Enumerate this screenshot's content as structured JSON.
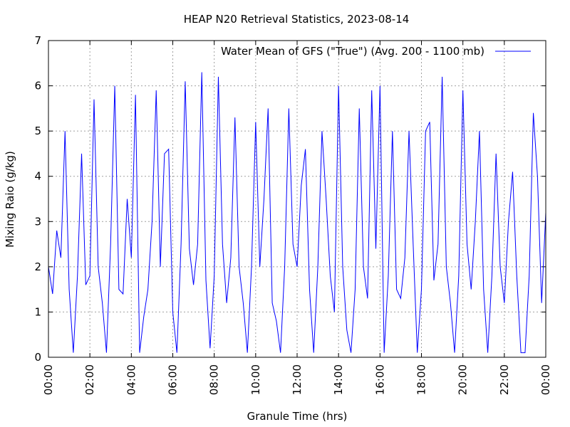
{
  "chart_data": {
    "type": "line",
    "title": "HEAP N20 Retrieval Statistics, 2023-08-14",
    "x_label": "Granule Time (hrs)",
    "y_label": "Mixing Raio (g/kg)",
    "x": [
      0,
      0.2,
      0.4,
      0.6,
      0.8,
      1,
      1.2,
      1.4,
      1.6,
      1.8,
      2,
      2.2,
      2.4,
      2.6,
      2.8,
      3,
      3.2,
      3.4,
      3.6,
      3.8,
      4,
      4.2,
      4.4,
      4.6,
      4.8,
      5,
      5.2,
      5.4,
      5.6,
      5.8,
      6,
      6.2,
      6.4,
      6.6,
      6.8,
      7,
      7.2,
      7.4,
      7.6,
      7.8,
      8,
      8.2,
      8.4,
      8.6,
      8.8,
      9,
      9.2,
      9.4,
      9.6,
      9.8,
      10,
      10.2,
      10.4,
      10.6,
      10.8,
      11,
      11.2,
      11.4,
      11.6,
      11.8,
      12,
      12.2,
      12.4,
      12.6,
      12.8,
      13,
      13.2,
      13.4,
      13.6,
      13.8,
      14,
      14.2,
      14.4,
      14.6,
      14.8,
      15,
      15.2,
      15.4,
      15.6,
      15.8,
      16,
      16.2,
      16.4,
      16.6,
      16.8,
      17,
      17.2,
      17.4,
      17.6,
      17.8,
      18,
      18.2,
      18.4,
      18.6,
      18.8,
      19,
      19.2,
      19.4,
      19.6,
      19.8,
      20,
      20.2,
      20.4,
      20.6,
      20.8,
      21,
      21.2,
      21.4,
      21.6,
      21.8,
      22,
      22.2,
      22.4,
      22.6,
      22.8,
      23,
      23.2,
      23.4,
      23.6,
      23.8,
      24
    ],
    "series": [
      {
        "name": "Water Mean of GFS (\"True\") (Avg. 200 - 1100 mb)",
        "color": "#0000ff",
        "values": [
          2.0,
          1.4,
          2.8,
          2.2,
          5.0,
          1.5,
          0.1,
          1.8,
          4.5,
          1.6,
          1.8,
          5.7,
          2.0,
          1.2,
          0.1,
          2.5,
          6.0,
          1.5,
          1.4,
          3.5,
          2.2,
          5.8,
          0.1,
          0.9,
          1.5,
          3.0,
          5.9,
          2.0,
          4.5,
          4.6,
          1.0,
          0.1,
          2.5,
          6.1,
          2.4,
          1.6,
          2.5,
          6.3,
          1.7,
          0.2,
          1.8,
          6.2,
          2.5,
          1.2,
          2.2,
          5.3,
          2.0,
          1.2,
          0.1,
          2.0,
          5.2,
          2.0,
          3.5,
          5.5,
          1.2,
          0.8,
          0.1,
          2.0,
          5.5,
          2.5,
          2.0,
          3.8,
          4.6,
          1.5,
          0.1,
          2.0,
          5.0,
          3.5,
          1.8,
          1.0,
          6.0,
          2.0,
          0.6,
          0.1,
          1.5,
          5.5,
          2.0,
          1.3,
          5.9,
          2.4,
          6.0,
          0.1,
          1.8,
          5.0,
          1.5,
          1.3,
          2.2,
          5.0,
          2.5,
          0.1,
          1.5,
          5.0,
          5.2,
          1.7,
          2.5,
          6.2,
          2.0,
          1.2,
          0.1,
          1.8,
          5.9,
          2.5,
          1.5,
          3.0,
          5.0,
          1.5,
          0.1,
          1.8,
          4.5,
          2.0,
          1.2,
          3.0,
          4.1,
          1.8,
          0.1,
          0.1,
          1.8,
          5.4,
          4.0,
          1.2,
          3.2
        ]
      }
    ],
    "xlim": [
      0,
      24
    ],
    "xticks": [
      {
        "value": 0,
        "label": "00:00"
      },
      {
        "value": 2,
        "label": "02:00"
      },
      {
        "value": 4,
        "label": "04:00"
      },
      {
        "value": 6,
        "label": "06:00"
      },
      {
        "value": 8,
        "label": "08:00"
      },
      {
        "value": 10,
        "label": "10:00"
      },
      {
        "value": 12,
        "label": "12:00"
      },
      {
        "value": 14,
        "label": "14:00"
      },
      {
        "value": 16,
        "label": "16:00"
      },
      {
        "value": 18,
        "label": "18:00"
      },
      {
        "value": 20,
        "label": "20:00"
      },
      {
        "value": 22,
        "label": "22:00"
      },
      {
        "value": 24,
        "label": "00:00"
      }
    ],
    "ylim": [
      0,
      7
    ],
    "yticks": [
      0,
      1,
      2,
      3,
      4,
      5,
      6,
      7
    ],
    "grid": true,
    "legend": "top-right"
  }
}
